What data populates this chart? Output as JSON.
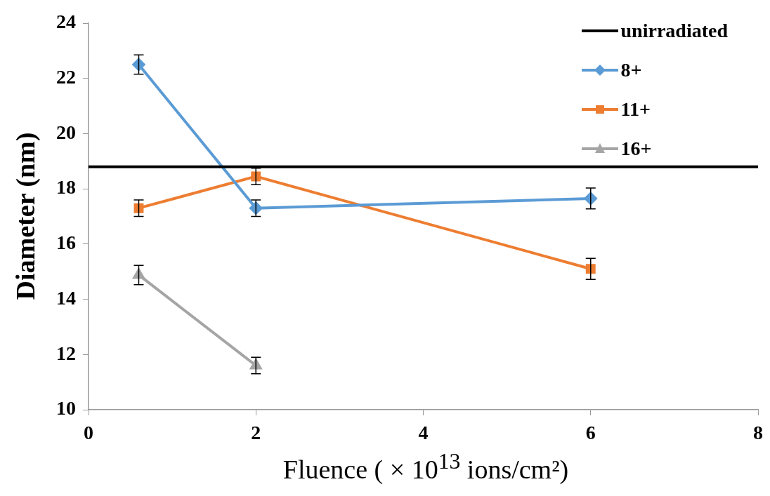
{
  "chart_data": {
    "type": "line",
    "xlabel": "Fluence ( × 10$^{13}$ ions/cm²)",
    "ylabel": "Diameter (nm)",
    "xlim": [
      0,
      8
    ],
    "xticks": [
      0,
      2,
      4,
      6,
      8
    ],
    "ylim": [
      10,
      24
    ],
    "yticks": [
      10,
      12,
      14,
      16,
      18,
      20,
      22,
      24
    ],
    "grid": false,
    "legend": "top right",
    "line_style": "solid",
    "series": [
      {
        "name": "unirradiated",
        "color": "#000000",
        "x": [
          0,
          8
        ],
        "values": [
          18.8,
          18.8
        ],
        "marker": "none"
      },
      {
        "name": "8+",
        "color": "#5b9bd5",
        "x": [
          0.6,
          2,
          6
        ],
        "values": [
          22.5,
          17.3,
          17.65
        ],
        "errors": [
          0.35,
          0.3,
          0.38
        ],
        "marker": "diamond"
      },
      {
        "name": "11+",
        "color": "#ed7d31",
        "x": [
          0.6,
          2,
          6
        ],
        "values": [
          17.3,
          18.45,
          15.1
        ],
        "errors": [
          0.3,
          0.3,
          0.38
        ],
        "marker": "square"
      },
      {
        "name": "16+",
        "color": "#a5a5a5",
        "x": [
          0.6,
          2
        ],
        "values": [
          14.88,
          11.6
        ],
        "errors": [
          0.35,
          0.3
        ],
        "marker": "triangle"
      }
    ]
  }
}
